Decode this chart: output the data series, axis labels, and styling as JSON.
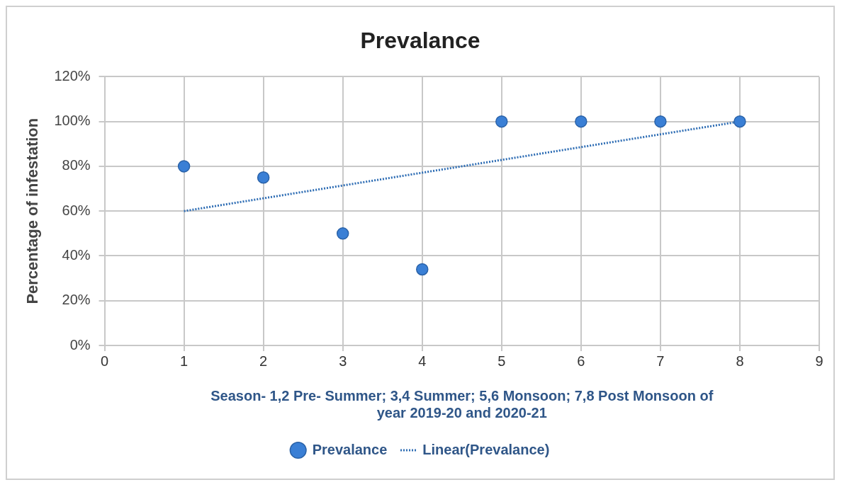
{
  "chart_data": {
    "type": "scatter",
    "title": "Prevalance",
    "xlabel": "Season- 1,2 Pre- Summer; 3,4 Summer; 5,6 Monsoon; 7,8 Post Monsoon of year 2019-20 and 2020-21",
    "ylabel": "Percentage of infestation",
    "x": [
      1,
      2,
      3,
      4,
      5,
      6,
      7,
      8
    ],
    "series": [
      {
        "name": "Prevalance",
        "color": "#3a7fd5",
        "values": [
          80,
          75,
          50,
          34,
          100,
          100,
          100,
          100
        ],
        "marker": "circle"
      },
      {
        "name": "Linear(Prevalance)",
        "type": "line",
        "color": "#2e6db4",
        "x": [
          1,
          8
        ],
        "values": [
          60,
          100
        ],
        "line_style": "dotted",
        "marker": "none"
      }
    ],
    "xlim": [
      0,
      9
    ],
    "xticks": [
      0,
      1,
      2,
      3,
      4,
      5,
      6,
      7,
      8,
      9
    ],
    "ylim": [
      0,
      120
    ],
    "yticks": [
      {
        "value": 0,
        "label": "0%"
      },
      {
        "value": 20,
        "label": "20%"
      },
      {
        "value": 40,
        "label": "40%"
      },
      {
        "value": 60,
        "label": "60%"
      },
      {
        "value": 80,
        "label": "80%"
      },
      {
        "value": 100,
        "label": "100%"
      },
      {
        "value": 120,
        "label": "120%"
      }
    ],
    "grid": true,
    "legend": "bottom"
  }
}
